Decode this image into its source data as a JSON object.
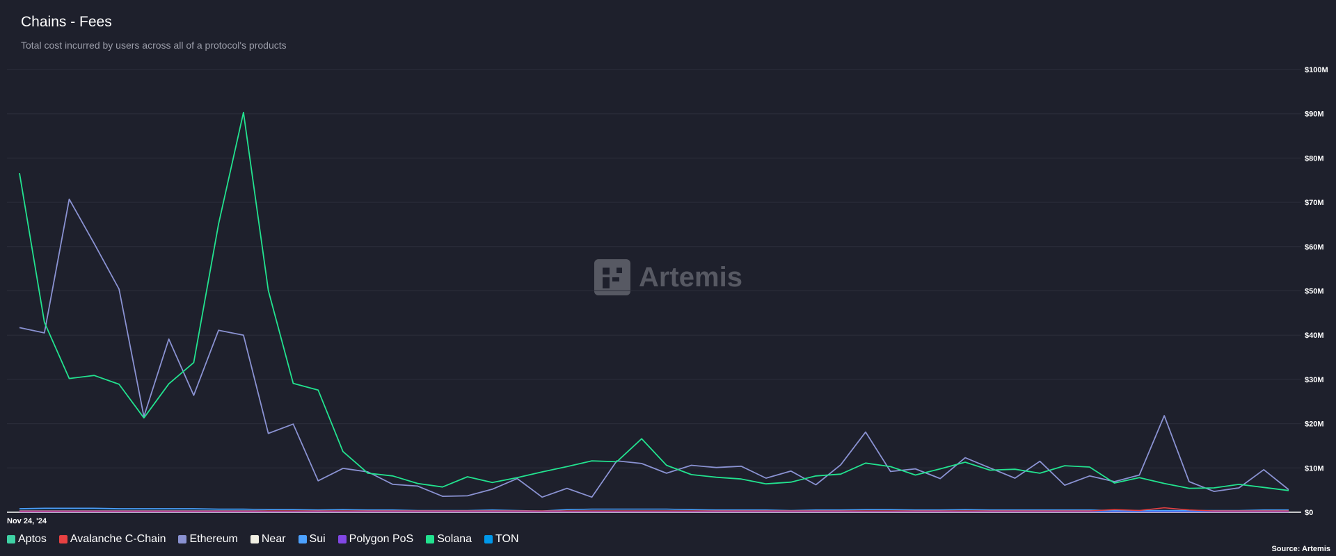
{
  "header": {
    "title": "Chains - Fees",
    "subtitle": "Total cost incurred by users across all of a protocol's products"
  },
  "watermark": {
    "text": "Artemis",
    "icon": "artemis-logo-icon"
  },
  "source": "Source: Artemis",
  "chart_data": {
    "type": "line",
    "title": "Chains - Fees",
    "subtitle": "Total cost incurred by users across all of a protocol's products",
    "x_start_label": "Nov 24, '24",
    "y_ticks": [
      "$0",
      "$10M",
      "$20M",
      "$30M",
      "$40M",
      "$50M",
      "$60M",
      "$70M",
      "$80M",
      "$90M",
      "$100M"
    ],
    "ylim": [
      0,
      100
    ],
    "y_unit": "millions USD",
    "grid": true,
    "legend_position": "bottom-left",
    "series": [
      {
        "name": "Aptos",
        "color": "#3fd2a5",
        "values": [
          0.2,
          0.2,
          0.2,
          0.2,
          0.2,
          0.2,
          0.2,
          0.2,
          0.2,
          0.2,
          0.2,
          0.2,
          0.2,
          0.2,
          0.2,
          0.2,
          0.2,
          0.2,
          0.2,
          0.2,
          0.2,
          0.2,
          0.2,
          0.2,
          0.2,
          0.2,
          0.2,
          0.2,
          0.2,
          0.2,
          0.2,
          0.2,
          0.2,
          0.2,
          0.2,
          0.2,
          0.2,
          0.2,
          0.2,
          0.2,
          0.2,
          0.2,
          0.2,
          0.2,
          0.2,
          0.2,
          0.2,
          0.2,
          0.2,
          0.2,
          0.2,
          0.2
        ]
      },
      {
        "name": "Avalanche C-Chain",
        "color": "#e84142",
        "values": [
          0.3,
          0.3,
          0.3,
          0.3,
          0.3,
          0.3,
          0.3,
          0.3,
          0.3,
          0.3,
          0.3,
          0.3,
          0.3,
          0.3,
          0.3,
          0.3,
          0.3,
          0.3,
          0.3,
          0.3,
          0.3,
          0.3,
          0.3,
          0.3,
          0.3,
          0.3,
          0.3,
          0.3,
          0.3,
          0.3,
          0.3,
          0.3,
          0.3,
          0.3,
          0.3,
          0.3,
          0.3,
          0.3,
          0.3,
          0.3,
          0.3,
          0.3,
          0.3,
          0.3,
          0.6,
          0.4,
          1.0,
          0.5,
          0.3,
          0.3,
          0.3,
          0.3
        ]
      },
      {
        "name": "Ethereum",
        "color": "#8a92d2",
        "values": [
          41.7,
          40.5,
          70.7,
          60.7,
          50.4,
          21.6,
          39.1,
          26.4,
          41.1,
          40.0,
          17.8,
          19.9,
          7.1,
          9.9,
          9.1,
          6.3,
          5.9,
          3.6,
          3.7,
          5.2,
          7.6,
          3.4,
          5.4,
          3.4,
          11.6,
          11.0,
          8.8,
          10.6,
          10.1,
          10.4,
          7.7,
          9.3,
          6.2,
          10.7,
          18.1,
          9.2,
          9.8,
          7.6,
          12.3,
          10.0,
          7.7,
          11.5,
          6.1,
          8.2,
          6.9,
          8.4,
          21.8,
          6.9,
          4.7,
          5.5,
          9.6,
          5.1
        ]
      },
      {
        "name": "Near",
        "color": "#f1efe4",
        "values": [
          0.1,
          0.1,
          0.1,
          0.1,
          0.1,
          0.1,
          0.1,
          0.1,
          0.1,
          0.1,
          0.1,
          0.1,
          0.1,
          0.1,
          0.1,
          0.1,
          0.1,
          0.1,
          0.1,
          0.1,
          0.1,
          0.1,
          0.1,
          0.1,
          0.1,
          0.1,
          0.1,
          0.1,
          0.1,
          0.1,
          0.1,
          0.1,
          0.1,
          0.1,
          0.1,
          0.1,
          0.1,
          0.1,
          0.1,
          0.1,
          0.1,
          0.1,
          0.1,
          0.1,
          0.1,
          0.1,
          0.1,
          0.1,
          0.1,
          0.1,
          0.1,
          0.1
        ]
      },
      {
        "name": "Sui",
        "color": "#4da2ff",
        "values": [
          0.8,
          0.9,
          0.9,
          0.9,
          0.8,
          0.8,
          0.8,
          0.8,
          0.7,
          0.7,
          0.6,
          0.6,
          0.5,
          0.6,
          0.5,
          0.5,
          0.4,
          0.4,
          0.4,
          0.5,
          0.4,
          0.3,
          0.6,
          0.7,
          0.7,
          0.7,
          0.7,
          0.6,
          0.5,
          0.5,
          0.5,
          0.4,
          0.5,
          0.5,
          0.6,
          0.6,
          0.5,
          0.5,
          0.6,
          0.5,
          0.5,
          0.5,
          0.5,
          0.5,
          0.4,
          0.4,
          0.4,
          0.4,
          0.4,
          0.4,
          0.5,
          0.5
        ]
      },
      {
        "name": "Polygon PoS",
        "color": "#8247e5",
        "values": [
          0.1,
          0.1,
          0.1,
          0.1,
          0.1,
          0.1,
          0.1,
          0.1,
          0.1,
          0.1,
          0.1,
          0.1,
          0.1,
          0.1,
          0.1,
          0.1,
          0.1,
          0.1,
          0.1,
          0.1,
          0.1,
          0.1,
          0.1,
          0.1,
          0.1,
          0.1,
          0.1,
          0.1,
          0.1,
          0.1,
          0.1,
          0.1,
          0.1,
          0.1,
          0.1,
          0.1,
          0.1,
          0.1,
          0.1,
          0.1,
          0.1,
          0.1,
          0.1,
          0.1,
          0.1,
          0.1,
          0.1,
          0.1,
          0.1,
          0.1,
          0.1,
          0.1
        ]
      },
      {
        "name": "Solana",
        "color": "#22e28f",
        "values": [
          76.6,
          42.9,
          30.2,
          30.9,
          28.9,
          21.3,
          29.0,
          33.8,
          65.1,
          90.3,
          50.1,
          29.1,
          27.6,
          13.7,
          8.8,
          8.2,
          6.5,
          5.7,
          8.0,
          6.7,
          7.8,
          9.1,
          10.3,
          11.6,
          11.4,
          16.6,
          10.6,
          8.5,
          7.9,
          7.5,
          6.4,
          6.8,
          8.2,
          8.6,
          11.1,
          10.3,
          8.4,
          9.8,
          11.3,
          9.5,
          9.7,
          8.8,
          10.5,
          10.2,
          6.6,
          7.8,
          6.5,
          5.4,
          5.5,
          6.3,
          5.6,
          4.9
        ]
      },
      {
        "name": "TON",
        "color": "#0098ea",
        "values": [
          0.4,
          0.4,
          0.4,
          0.4,
          0.4,
          0.4,
          0.4,
          0.4,
          0.4,
          0.4,
          0.3,
          0.3,
          0.3,
          0.3,
          0.3,
          0.3,
          0.3,
          0.3,
          0.3,
          0.3,
          0.3,
          0.3,
          0.3,
          0.3,
          0.3,
          0.3,
          0.3,
          0.3,
          0.3,
          0.3,
          0.3,
          0.3,
          0.3,
          0.3,
          0.3,
          0.3,
          0.3,
          0.3,
          0.3,
          0.3,
          0.3,
          0.3,
          0.3,
          0.3,
          0.3,
          0.3,
          0.3,
          0.3,
          0.3,
          0.3,
          0.3,
          0.3
        ]
      }
    ]
  }
}
